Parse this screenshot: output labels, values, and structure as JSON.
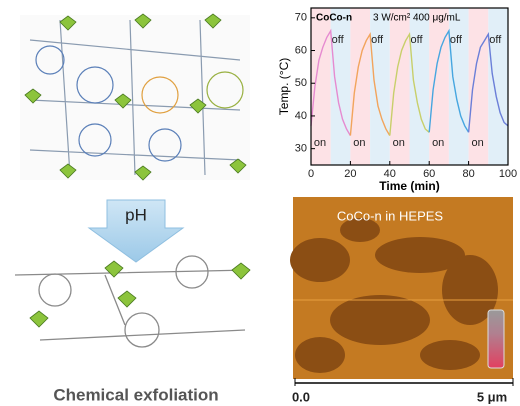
{
  "chart_data": {
    "type": "line",
    "title": "CoCo-n",
    "annotation": "3 W/cm²  400 μg/mL",
    "x_label": "Time (min)",
    "y_label": "Temp. (°C)",
    "xlim": [
      0,
      100
    ],
    "xticks": [
      0,
      20,
      40,
      60,
      80,
      100
    ],
    "ylim": [
      25,
      73
    ],
    "yticks": [
      30,
      40,
      50,
      60,
      70
    ],
    "shaded_bands": [
      {
        "label": "on",
        "x": [
          0,
          10
        ],
        "color": "#fde2e6"
      },
      {
        "label": "off",
        "x": [
          10,
          20
        ],
        "color": "#e1eff8"
      },
      {
        "label": "on",
        "x": [
          20,
          30
        ],
        "color": "#fde2e6"
      },
      {
        "label": "off",
        "x": [
          30,
          40
        ],
        "color": "#e1eff8"
      },
      {
        "label": "on",
        "x": [
          40,
          50
        ],
        "color": "#fde2e6"
      },
      {
        "label": "off",
        "x": [
          50,
          60
        ],
        "color": "#e1eff8"
      },
      {
        "label": "on",
        "x": [
          60,
          70
        ],
        "color": "#fde2e6"
      },
      {
        "label": "off",
        "x": [
          70,
          80
        ],
        "color": "#e1eff8"
      },
      {
        "label": "on",
        "x": [
          80,
          90
        ],
        "color": "#fde2e6"
      },
      {
        "label": "off",
        "x": [
          90,
          100
        ],
        "color": "#e1eff8"
      }
    ],
    "series": [
      {
        "color": "#e68ad0",
        "x": [
          0,
          2,
          4,
          6,
          8,
          10,
          12,
          14,
          16,
          18,
          20
        ],
        "values": [
          37,
          49,
          57,
          61,
          64,
          66,
          52,
          44,
          39,
          36,
          34
        ]
      },
      {
        "color": "#f2a45c",
        "x": [
          20,
          22,
          24,
          26,
          28,
          30,
          32,
          34,
          36,
          38,
          40
        ],
        "values": [
          34,
          47,
          55,
          60,
          63,
          65,
          51,
          43,
          39,
          36,
          34
        ]
      },
      {
        "color": "#c8cf6a",
        "x": [
          40,
          42,
          44,
          46,
          48,
          50,
          52,
          54,
          56,
          58,
          60
        ],
        "values": [
          34,
          47,
          55,
          60,
          63,
          65,
          51,
          44,
          39,
          36,
          35
        ]
      },
      {
        "color": "#46a6e0",
        "x": [
          60,
          62,
          64,
          66,
          68,
          70,
          72,
          74,
          76,
          78,
          80
        ],
        "values": [
          35,
          48,
          56,
          61,
          64,
          66,
          52,
          45,
          40,
          37,
          35
        ]
      },
      {
        "color": "#6b7fd8",
        "x": [
          80,
          82,
          84,
          86,
          88,
          90,
          92,
          94,
          96,
          98,
          100
        ],
        "values": [
          35,
          48,
          56,
          61,
          63,
          65,
          53,
          46,
          41,
          38,
          37
        ]
      }
    ]
  },
  "figure": {
    "ph_label": "pH",
    "caption": "Chemical exfoliation",
    "afm_label": "CoCo-n in HEPES",
    "scale_start": "0.0",
    "scale_end": "5 μm"
  }
}
